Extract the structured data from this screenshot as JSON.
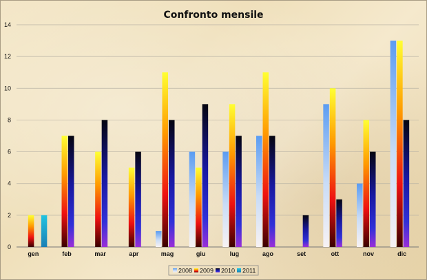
{
  "chart_data": {
    "type": "bar",
    "title": "Confronto mensile",
    "categories": [
      "gen",
      "feb",
      "mar",
      "apr",
      "mag",
      "giu",
      "lug",
      "ago",
      "set",
      "ott",
      "nov",
      "dic"
    ],
    "series": [
      {
        "name": "2008",
        "values": [
          0,
          0,
          0,
          0,
          1,
          6,
          6,
          7,
          0,
          9,
          4,
          13
        ],
        "color": "#6fa8f0"
      },
      {
        "name": "2009",
        "values": [
          2,
          7,
          6,
          5,
          11,
          5,
          9,
          11,
          0,
          10,
          8,
          13
        ],
        "color": "#ff9900"
      },
      {
        "name": "2010",
        "values": [
          0,
          7,
          8,
          6,
          8,
          9,
          7,
          7,
          2,
          3,
          6,
          8
        ],
        "color": "#1a1a80"
      },
      {
        "name": "2011",
        "values": [
          2,
          0,
          0,
          0,
          0,
          0,
          0,
          0,
          0,
          0,
          0,
          0
        ],
        "color": "#22b8d8"
      }
    ],
    "ylim": [
      0,
      14
    ],
    "yticks": [
      0,
      2,
      4,
      6,
      8,
      10,
      12,
      14
    ],
    "grid": true,
    "legend": "bottom"
  }
}
